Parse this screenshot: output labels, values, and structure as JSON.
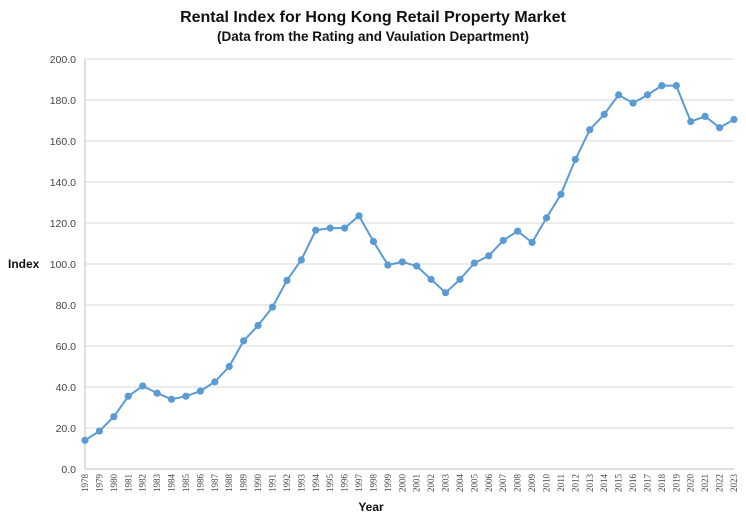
{
  "chart_data": {
    "type": "line",
    "title": "Rental Index for Hong Kong Retail Property Market",
    "subtitle": "(Data from the Rating and Vaulation Department)",
    "xlabel": "Year",
    "ylabel": "Index",
    "ylim": [
      0,
      200
    ],
    "ytick_labels": [
      "0.0",
      "20.0",
      "40.0",
      "60.0",
      "80.0",
      "100.0",
      "120.0",
      "140.0",
      "160.0",
      "180.0",
      "200.0"
    ],
    "grid": true,
    "line_color": "#5b9bd5",
    "x": [
      "1978",
      "1979",
      "1980",
      "1981",
      "1982",
      "1983",
      "1984",
      "1985",
      "1986",
      "1987",
      "1988",
      "1989",
      "1990",
      "1991",
      "1992",
      "1993",
      "1994",
      "1995",
      "1996",
      "1997",
      "1998",
      "1999",
      "2000",
      "2001",
      "2002",
      "2003",
      "2004",
      "2005",
      "2006",
      "2007",
      "2008",
      "2009",
      "2010",
      "2011",
      "2012",
      "2013",
      "2014",
      "2015",
      "2016",
      "2017",
      "2018",
      "2019",
      "2020",
      "2021",
      "2022",
      "2023"
    ],
    "series": [
      {
        "values": [
          14.0,
          18.5,
          25.5,
          35.5,
          40.5,
          37.0,
          34.0,
          35.5,
          38.0,
          42.5,
          50.0,
          62.5,
          70.0,
          79.0,
          92.0,
          102.0,
          116.5,
          117.5,
          117.5,
          123.5,
          111.0,
          99.5,
          101.0,
          99.0,
          92.5,
          86.0,
          92.5,
          100.5,
          104.0,
          111.5,
          116.0,
          110.5,
          122.5,
          134.0,
          151.0,
          165.5,
          173.0,
          182.5,
          178.5,
          182.5,
          187.0,
          187.0,
          169.5,
          172.0,
          166.5,
          170.5
        ]
      }
    ]
  }
}
